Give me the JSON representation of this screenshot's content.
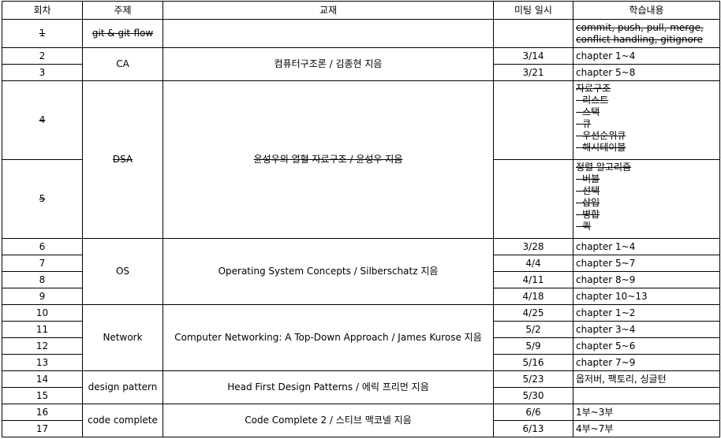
{
  "headers": [
    "회차",
    "주제",
    "교재",
    "미팅 일시",
    "학습내용"
  ],
  "rows": {
    "r1": {
      "no": "1",
      "topic": "git & git-flow",
      "book": "",
      "date": "",
      "content": [
        "commit, push, pull, merge,",
        "conflict handling, gitignore"
      ]
    },
    "r2": {
      "no": "2",
      "topic": "CA",
      "book": "컴퓨터구조론 / 김종현 지음",
      "date": "3/14",
      "content": "chapter 1~4"
    },
    "r3": {
      "no": "3",
      "date": "3/21",
      "content": "chapter 5~8"
    },
    "r4": {
      "no": "4",
      "topic": "DSA",
      "book": "윤성우의 열혈 자료구조 / 윤성우 지음",
      "date": "",
      "content": [
        "자료구조",
        "- 리스트",
        "- 스택",
        "- 큐",
        "- 우선순위큐",
        "- 해시테이블"
      ]
    },
    "r5": {
      "no": "5",
      "date": "",
      "content": [
        "정렬 알고리즘",
        "- 버블",
        "- 선택",
        "- 삽입",
        "- 병합",
        "- 퀵"
      ]
    },
    "r6": {
      "no": "6",
      "topic": "OS",
      "book": "Operating System Concepts / Silberschatz 지음",
      "date": "3/28",
      "content": "chapter 1~4"
    },
    "r7": {
      "no": "7",
      "date": "4/4",
      "content": "chapter 5~7"
    },
    "r8": {
      "no": "8",
      "date": "4/11",
      "content": "chapter 8~9"
    },
    "r9": {
      "no": "9",
      "date": "4/18",
      "content": "chapter 10~13"
    },
    "r10": {
      "no": "10",
      "topic": "Network",
      "book": "Computer Networking: A Top-Down Approach / James Kurose 지음",
      "date": "4/25",
      "content": "chapter 1~2"
    },
    "r11": {
      "no": "11",
      "date": "5/2",
      "content": "chapter 3~4"
    },
    "r12": {
      "no": "12",
      "date": "5/9",
      "content": "chapter 5~6"
    },
    "r13": {
      "no": "13",
      "date": "5/16",
      "content": "chapter 7~9"
    },
    "r14": {
      "no": "14",
      "topic": "design pattern",
      "book": "Head First Design Patterns / 에릭 프리먼 지음",
      "date": "5/23",
      "content": "옵저버, 팩토리, 싱글턴"
    },
    "r15": {
      "no": "15",
      "date": "5/30",
      "content": ""
    },
    "r16": {
      "no": "16",
      "topic": "code complete",
      "book": "Code Complete 2 / 스티브 맥코넬 지음",
      "date": "6/6",
      "content": "1부~3부"
    },
    "r17": {
      "no": "17",
      "date": "6/13",
      "content": "4부~7부"
    }
  }
}
